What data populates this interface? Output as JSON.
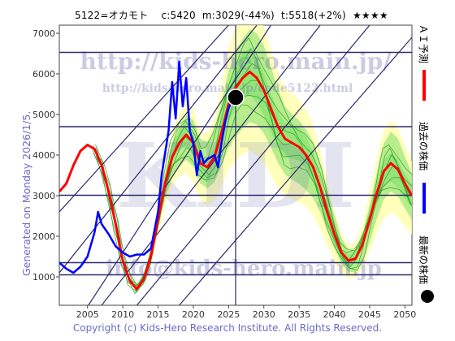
{
  "header": {
    "code": "5122=オカモト",
    "current": "c:5420",
    "min": "m:3029(-44%)",
    "target": "t:5518(+2%)",
    "stars": "★★★★"
  },
  "side_label": "Generated on Monday 2026/1/5.",
  "watermarks": {
    "top": "http://kids-hero.main.jp/",
    "middle": "http://kids-hero.main.jp/code5122.html",
    "bottom": "info@kids-hero.main.jp",
    "center": "KIDI"
  },
  "legend": {
    "ai_forecast": "ＡＩ予測",
    "past_price": "過去の株価",
    "latest_price": "最新の株価"
  },
  "footer": "Copyright (c) Kids-Hero Research Institute. All Rights Reserved.",
  "colors": {
    "ai_forecast": "#ff0000",
    "past_price": "#0000ff",
    "latest_marker": "#000000",
    "band_green": "#7ddf6a",
    "band_yellow": "#ffffaa",
    "grid_line": "#2a2a6a",
    "axis_text": "#333333"
  },
  "chart_data": {
    "type": "line",
    "x_ticks": [
      2005,
      2010,
      2015,
      2020,
      2025,
      2030,
      2035,
      2040,
      2045,
      2050
    ],
    "y_ticks": [
      1000,
      2000,
      3000,
      4000,
      5000,
      6000,
      7000
    ],
    "xlim": [
      2001,
      2051
    ],
    "ylim": [
      300,
      7200
    ],
    "horizontal_lines": [
      1050,
      1350,
      3010,
      4700,
      6530
    ],
    "vertical_line_x": 2026,
    "latest_point": {
      "x": 2026.0,
      "y": 5420
    },
    "series": [
      {
        "name": "ＡＩ予測",
        "points": [
          [
            2001,
            3100
          ],
          [
            2002,
            3300
          ],
          [
            2003,
            3750
          ],
          [
            2004,
            4100
          ],
          [
            2005,
            4250
          ],
          [
            2006,
            4150
          ],
          [
            2007,
            3750
          ],
          [
            2008,
            3100
          ],
          [
            2009,
            2300
          ],
          [
            2010,
            1400
          ],
          [
            2011,
            900
          ],
          [
            2012,
            700
          ],
          [
            2013,
            950
          ],
          [
            2014,
            1500
          ],
          [
            2015,
            2400
          ],
          [
            2016,
            3300
          ],
          [
            2017,
            3950
          ],
          [
            2018,
            4300
          ],
          [
            2019,
            4500
          ],
          [
            2020,
            4300
          ],
          [
            2021,
            3800
          ],
          [
            2022,
            3700
          ],
          [
            2023,
            3950
          ],
          [
            2024,
            4550
          ],
          [
            2025,
            5250
          ],
          [
            2026,
            5650
          ],
          [
            2027,
            5900
          ],
          [
            2028,
            6050
          ],
          [
            2029,
            5900
          ],
          [
            2030,
            5600
          ],
          [
            2031,
            5150
          ],
          [
            2032,
            4700
          ],
          [
            2033,
            4400
          ],
          [
            2034,
            4300
          ],
          [
            2035,
            4200
          ],
          [
            2036,
            4000
          ],
          [
            2037,
            3700
          ],
          [
            2038,
            3200
          ],
          [
            2039,
            2600
          ],
          [
            2040,
            2050
          ],
          [
            2041,
            1600
          ],
          [
            2042,
            1400
          ],
          [
            2043,
            1450
          ],
          [
            2044,
            1800
          ],
          [
            2045,
            2400
          ],
          [
            2046,
            3050
          ],
          [
            2047,
            3600
          ],
          [
            2048,
            3800
          ],
          [
            2049,
            3650
          ],
          [
            2050,
            3300
          ],
          [
            2051,
            3000
          ]
        ]
      },
      {
        "name": "過去の株価",
        "points": [
          [
            2001,
            1350
          ],
          [
            2002,
            1200
          ],
          [
            2003,
            1100
          ],
          [
            2004,
            1250
          ],
          [
            2005,
            1500
          ],
          [
            2006,
            2100
          ],
          [
            2006.5,
            2600
          ],
          [
            2007,
            2300
          ],
          [
            2008,
            2050
          ],
          [
            2009,
            1750
          ],
          [
            2010,
            1600
          ],
          [
            2011,
            1500
          ],
          [
            2012,
            1550
          ],
          [
            2013,
            1550
          ],
          [
            2014,
            1700
          ],
          [
            2015,
            2600
          ],
          [
            2015.5,
            3500
          ],
          [
            2016,
            4050
          ],
          [
            2016.5,
            4600
          ],
          [
            2017,
            5800
          ],
          [
            2017.5,
            4900
          ],
          [
            2018,
            6300
          ],
          [
            2018.5,
            5200
          ],
          [
            2019,
            5900
          ],
          [
            2019.5,
            4600
          ],
          [
            2020,
            4300
          ],
          [
            2020.5,
            3500
          ],
          [
            2021,
            4100
          ],
          [
            2021.5,
            3800
          ],
          [
            2022,
            3900
          ],
          [
            2023,
            4000
          ],
          [
            2023.5,
            3700
          ],
          [
            2024,
            4300
          ],
          [
            2024.5,
            4800
          ],
          [
            2025,
            5150
          ],
          [
            2025.5,
            5350
          ],
          [
            2026,
            5420
          ]
        ]
      }
    ]
  }
}
